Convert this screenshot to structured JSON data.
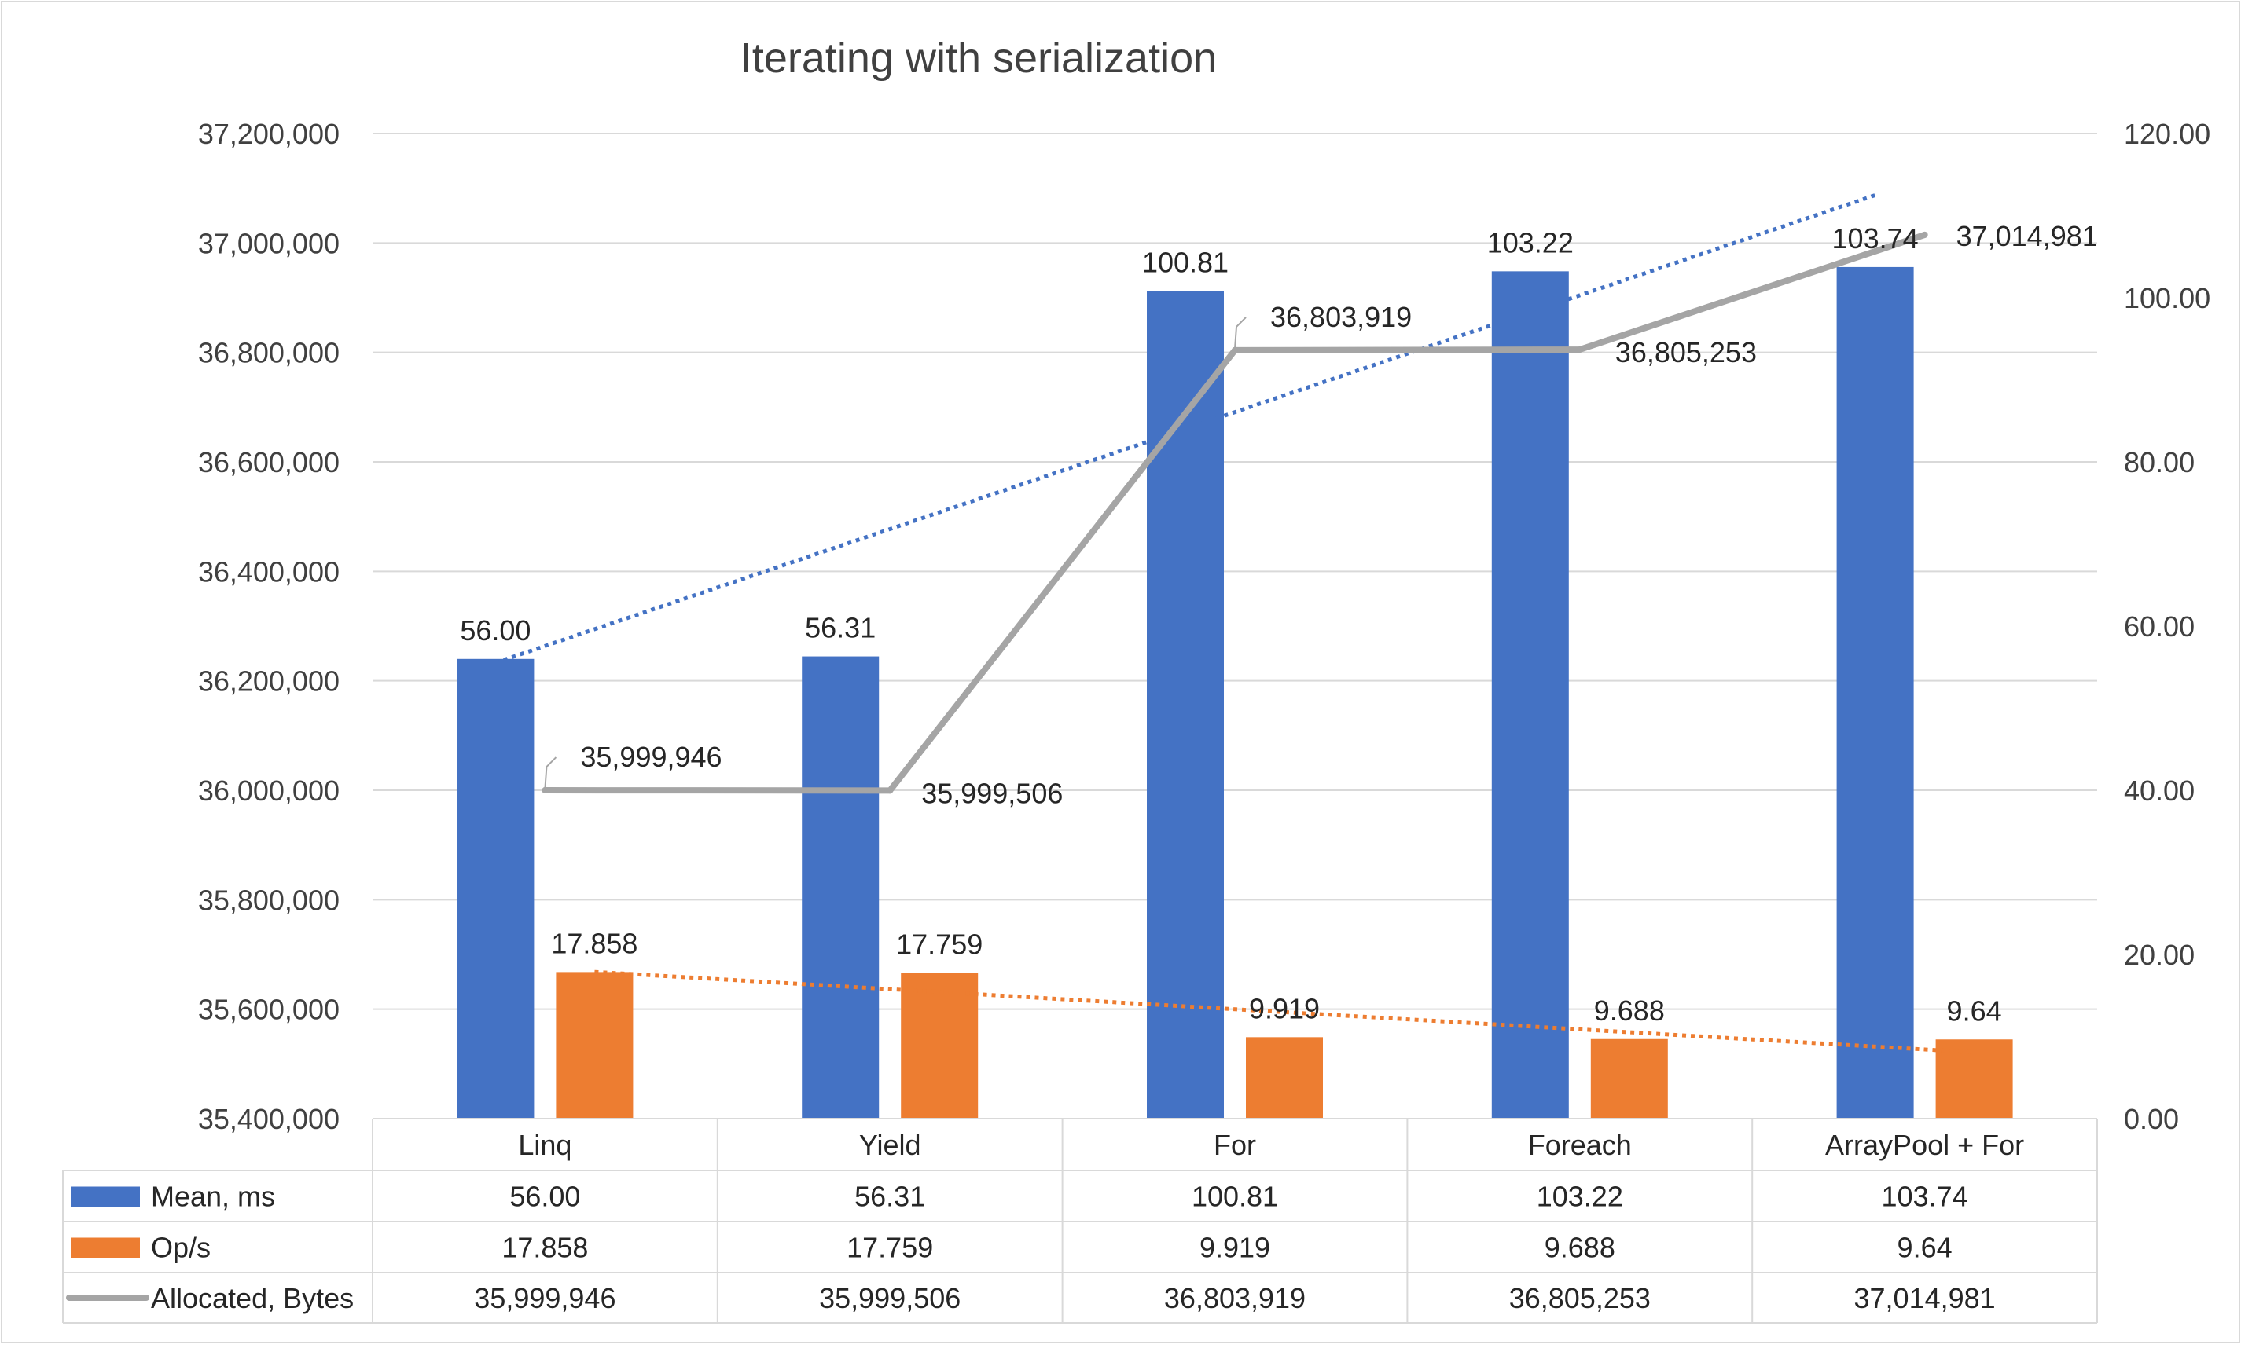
{
  "chart_data": {
    "type": "bar",
    "title": "Iterating with serialization",
    "categories": [
      "Linq",
      "Yield",
      "For",
      "Foreach",
      "ArrayPool + For"
    ],
    "y_left": {
      "min": 35400000,
      "max": 37200000,
      "ticks": [
        "35,400,000",
        "35,600,000",
        "35,800,000",
        "36,000,000",
        "36,200,000",
        "36,400,000",
        "36,600,000",
        "36,800,000",
        "37,000,000",
        "37,200,000"
      ]
    },
    "y_right": {
      "min": 0,
      "max": 120,
      "ticks": [
        "0.00",
        "20.00",
        "40.00",
        "60.00",
        "80.00",
        "100.00",
        "120.00"
      ]
    },
    "grid": true,
    "legend": "data-table",
    "series": [
      {
        "name": "Mean, ms",
        "kind": "bar",
        "axis": "right",
        "color": "#4472C4",
        "values": [
          56.0,
          56.31,
          100.81,
          103.22,
          103.74
        ],
        "labels": [
          "56.00",
          "56.31",
          "100.81",
          "103.22",
          "103.74"
        ],
        "trendline": true
      },
      {
        "name": "Op/s",
        "kind": "bar",
        "axis": "right",
        "color": "#ED7D31",
        "values": [
          17.858,
          17.759,
          9.919,
          9.688,
          9.64
        ],
        "labels": [
          "17.858",
          "17.759",
          "9.919",
          "9.688",
          "9.64"
        ],
        "trendline": true
      },
      {
        "name": "Allocated, Bytes",
        "kind": "line",
        "axis": "left",
        "color": "#A5A5A5",
        "values": [
          35999946,
          35999506,
          36803919,
          36805253,
          37014981
        ],
        "labels": [
          "35,999,946",
          "35,999,506",
          "36,803,919",
          "36,805,253",
          "37,014,981"
        ]
      }
    ]
  }
}
